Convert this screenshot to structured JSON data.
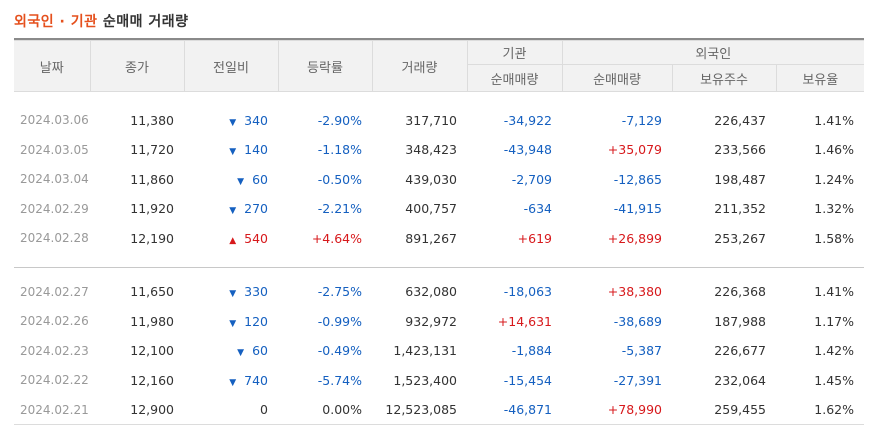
{
  "title": {
    "highlight": "외국인 · 기관",
    "rest": " 순매매 거래량"
  },
  "headers": {
    "date": "날짜",
    "close": "종가",
    "change": "전일비",
    "rate": "등락률",
    "volume": "거래량",
    "inst_group": "기관",
    "foreign_group": "외국인",
    "inst_net": "순매매량",
    "foreign_net": "순매매량",
    "foreign_hold": "보유주수",
    "foreign_ratio": "보유율"
  },
  "colors": {
    "up": "#d7191c",
    "down": "#1560c0",
    "accent": "#e5501d"
  },
  "rows": [
    {
      "date": "2024.03.06",
      "close": "11,380",
      "dir": "down",
      "change": "340",
      "rate": "-2.90%",
      "volume": "317,710",
      "inst": "-34,922",
      "foreign": "-7,129",
      "hold": "226,437",
      "ratio": "1.41%"
    },
    {
      "date": "2024.03.05",
      "close": "11,720",
      "dir": "down",
      "change": "140",
      "rate": "-1.18%",
      "volume": "348,423",
      "inst": "-43,948",
      "foreign": "+35,079",
      "hold": "233,566",
      "ratio": "1.46%"
    },
    {
      "date": "2024.03.04",
      "close": "11,860",
      "dir": "down",
      "change": "60",
      "rate": "-0.50%",
      "volume": "439,030",
      "inst": "-2,709",
      "foreign": "-12,865",
      "hold": "198,487",
      "ratio": "1.24%"
    },
    {
      "date": "2024.02.29",
      "close": "11,920",
      "dir": "down",
      "change": "270",
      "rate": "-2.21%",
      "volume": "400,757",
      "inst": "-634",
      "foreign": "-41,915",
      "hold": "211,352",
      "ratio": "1.32%"
    },
    {
      "date": "2024.02.28",
      "close": "12,190",
      "dir": "up",
      "change": "540",
      "rate": "+4.64%",
      "volume": "891,267",
      "inst": "+619",
      "foreign": "+26,899",
      "hold": "253,267",
      "ratio": "1.58%"
    },
    {
      "date": "2024.02.27",
      "close": "11,650",
      "dir": "down",
      "change": "330",
      "rate": "-2.75%",
      "volume": "632,080",
      "inst": "-18,063",
      "foreign": "+38,380",
      "hold": "226,368",
      "ratio": "1.41%"
    },
    {
      "date": "2024.02.26",
      "close": "11,980",
      "dir": "down",
      "change": "120",
      "rate": "-0.99%",
      "volume": "932,972",
      "inst": "+14,631",
      "foreign": "-38,689",
      "hold": "187,988",
      "ratio": "1.17%"
    },
    {
      "date": "2024.02.23",
      "close": "12,100",
      "dir": "down",
      "change": "60",
      "rate": "-0.49%",
      "volume": "1,423,131",
      "inst": "-1,884",
      "foreign": "-5,387",
      "hold": "226,677",
      "ratio": "1.42%"
    },
    {
      "date": "2024.02.22",
      "close": "12,160",
      "dir": "down",
      "change": "740",
      "rate": "-5.74%",
      "volume": "1,523,400",
      "inst": "-15,454",
      "foreign": "-27,391",
      "hold": "232,064",
      "ratio": "1.45%"
    },
    {
      "date": "2024.02.21",
      "close": "12,900",
      "dir": "flat",
      "change": "0",
      "rate": "0.00%",
      "volume": "12,523,085",
      "inst": "-46,871",
      "foreign": "+78,990",
      "hold": "259,455",
      "ratio": "1.62%"
    }
  ]
}
